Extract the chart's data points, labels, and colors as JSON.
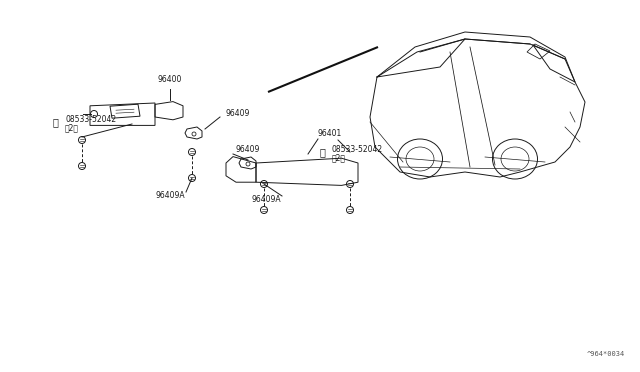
{
  "bg_color": "#ffffff",
  "line_color": "#1a1a1a",
  "figure_code": "^964*0034",
  "fig_width": 6.4,
  "fig_height": 3.72,
  "font_size": 5.5
}
